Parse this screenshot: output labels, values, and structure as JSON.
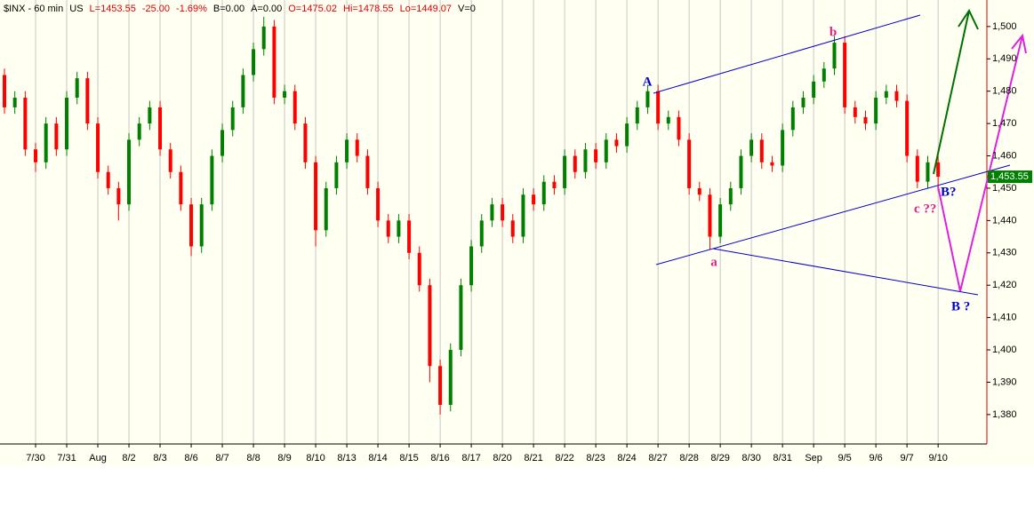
{
  "chart_data": {
    "type": "candlestick",
    "header": [
      {
        "text": "$INX - 60 min",
        "color": "#000000"
      },
      {
        "text": "US",
        "color": "#000000"
      },
      {
        "text": "L=1453.55",
        "color": "#e00000"
      },
      {
        "text": "-25.00",
        "color": "#e00000"
      },
      {
        "text": "-1.69%",
        "color": "#e00000"
      },
      {
        "text": "B=0.00",
        "color": "#000000"
      },
      {
        "text": "A=0.00",
        "color": "#000000"
      },
      {
        "text": "O=1475.02",
        "color": "#e00000"
      },
      {
        "text": "Hi=1478.55",
        "color": "#e00000"
      },
      {
        "text": "Lo=1449.07",
        "color": "#e00000"
      },
      {
        "text": "V=0",
        "color": "#000000"
      }
    ],
    "up_color": "#008000",
    "down_color": "#ff0000",
    "open": [
      1485,
      1475,
      1478,
      1462,
      1458,
      1470,
      1462,
      1478,
      1484,
      1470,
      1455,
      1450,
      1445,
      1465,
      1470,
      1475,
      1462,
      1455,
      1445,
      1432,
      1445,
      1460,
      1468,
      1475,
      1485,
      1493,
      1500,
      1478,
      1480,
      1470,
      1458,
      1437,
      1450,
      1458,
      1465,
      1460,
      1450,
      1440,
      1435,
      1440,
      1430,
      1420,
      1395,
      1383,
      1400,
      1420,
      1432,
      1440,
      1445,
      1440,
      1435,
      1448,
      1445,
      1452,
      1450,
      1460,
      1455,
      1462,
      1458,
      1465,
      1463,
      1470,
      1475,
      1480,
      1470,
      1472,
      1465,
      1450,
      1448,
      1435,
      1445,
      1450,
      1460,
      1465,
      1458,
      1457,
      1468,
      1475,
      1478,
      1483,
      1487,
      1495,
      1475,
      1472,
      1470,
      1478,
      1480,
      1477,
      1460,
      1452,
      1458
    ],
    "high": [
      1487,
      1480,
      1480,
      1464,
      1472,
      1472,
      1480,
      1486,
      1486,
      1472,
      1457,
      1452,
      1467,
      1472,
      1477,
      1477,
      1464,
      1457,
      1447,
      1447,
      1462,
      1470,
      1477,
      1487,
      1495,
      1503,
      1502,
      1482,
      1482,
      1472,
      1460,
      1452,
      1460,
      1467,
      1467,
      1462,
      1452,
      1442,
      1442,
      1442,
      1432,
      1422,
      1397,
      1402,
      1422,
      1434,
      1442,
      1447,
      1447,
      1442,
      1450,
      1450,
      1454,
      1454,
      1462,
      1462,
      1464,
      1464,
      1467,
      1467,
      1472,
      1477,
      1482,
      1482,
      1474,
      1474,
      1467,
      1452,
      1450,
      1447,
      1452,
      1462,
      1467,
      1467,
      1460,
      1470,
      1477,
      1480,
      1485,
      1489,
      1497,
      1497,
      1477,
      1474,
      1480,
      1482,
      1482,
      1479,
      1462,
      1460,
      1460
    ],
    "low": [
      1473,
      1473,
      1460,
      1455,
      1456,
      1460,
      1460,
      1476,
      1468,
      1453,
      1448,
      1440,
      1443,
      1463,
      1468,
      1460,
      1453,
      1443,
      1429,
      1430,
      1443,
      1458,
      1466,
      1473,
      1483,
      1491,
      1476,
      1476,
      1468,
      1456,
      1432,
      1435,
      1448,
      1456,
      1458,
      1448,
      1438,
      1433,
      1433,
      1428,
      1418,
      1390,
      1380,
      1381,
      1398,
      1418,
      1430,
      1438,
      1438,
      1433,
      1433,
      1443,
      1443,
      1448,
      1448,
      1453,
      1453,
      1456,
      1456,
      1461,
      1461,
      1468,
      1473,
      1468,
      1468,
      1463,
      1448,
      1446,
      1431,
      1433,
      1443,
      1448,
      1458,
      1456,
      1455,
      1455,
      1466,
      1473,
      1476,
      1481,
      1485,
      1473,
      1470,
      1468,
      1468,
      1476,
      1475,
      1458,
      1450,
      1450,
      1449.07
    ],
    "close": [
      1475,
      1478,
      1462,
      1458,
      1470,
      1462,
      1478,
      1484,
      1470,
      1455,
      1450,
      1445,
      1465,
      1470,
      1475,
      1462,
      1455,
      1445,
      1432,
      1445,
      1460,
      1468,
      1475,
      1485,
      1493,
      1500,
      1478,
      1480,
      1470,
      1458,
      1437,
      1450,
      1458,
      1465,
      1460,
      1450,
      1440,
      1435,
      1440,
      1430,
      1420,
      1395,
      1383,
      1400,
      1420,
      1432,
      1440,
      1445,
      1440,
      1435,
      1448,
      1445,
      1452,
      1450,
      1460,
      1455,
      1462,
      1458,
      1465,
      1463,
      1470,
      1475,
      1480,
      1470,
      1472,
      1465,
      1450,
      1448,
      1435,
      1445,
      1450,
      1460,
      1465,
      1458,
      1457,
      1468,
      1475,
      1478,
      1483,
      1487,
      1495,
      1475,
      1472,
      1470,
      1478,
      1480,
      1477,
      1460,
      1452,
      1458,
      1453.55
    ],
    "last_price": {
      "value": 1453.55,
      "label": "1,453.55"
    },
    "xlim": [
      -0.43,
      94.7
    ],
    "xticks": [
      {
        "value": 3,
        "label": "7/30"
      },
      {
        "value": 6,
        "label": "7/31"
      },
      {
        "value": 9,
        "label": "Aug"
      },
      {
        "value": 12,
        "label": "8/2"
      },
      {
        "value": 15,
        "label": "8/3"
      },
      {
        "value": 18,
        "label": "8/6"
      },
      {
        "value": 21,
        "label": "8/7"
      },
      {
        "value": 24,
        "label": "8/8"
      },
      {
        "value": 27,
        "label": "8/9"
      },
      {
        "value": 30,
        "label": "8/10"
      },
      {
        "value": 33,
        "label": "8/13"
      },
      {
        "value": 36,
        "label": "8/14"
      },
      {
        "value": 39,
        "label": "8/15"
      },
      {
        "value": 42,
        "label": "8/16"
      },
      {
        "value": 45,
        "label": "8/17"
      },
      {
        "value": 48,
        "label": "8/20"
      },
      {
        "value": 51,
        "label": "8/21"
      },
      {
        "value": 54,
        "label": "8/22"
      },
      {
        "value": 57,
        "label": "8/23"
      },
      {
        "value": 60,
        "label": "8/24"
      },
      {
        "value": 63,
        "label": "8/27"
      },
      {
        "value": 66,
        "label": "8/28"
      },
      {
        "value": 69,
        "label": "8/29"
      },
      {
        "value": 72,
        "label": "8/30"
      },
      {
        "value": 75,
        "label": "8/31"
      },
      {
        "value": 78,
        "label": "Sep"
      },
      {
        "value": 81,
        "label": "9/5"
      },
      {
        "value": 84,
        "label": "9/6"
      },
      {
        "value": 87,
        "label": "9/7"
      },
      {
        "value": 90,
        "label": "9/10"
      }
    ],
    "ylim": [
      1370.9,
      1508.2
    ],
    "yticks": [
      {
        "value": 1380,
        "label": "1,380"
      },
      {
        "value": 1390,
        "label": "1,390"
      },
      {
        "value": 1400,
        "label": "1,400"
      },
      {
        "value": 1410,
        "label": "1,410"
      },
      {
        "value": 1420,
        "label": "1,420"
      },
      {
        "value": 1430,
        "label": "1,430"
      },
      {
        "value": 1440,
        "label": "1,440"
      },
      {
        "value": 1450,
        "label": "1,450"
      },
      {
        "value": 1460,
        "label": "1,460"
      },
      {
        "value": 1470,
        "label": "1,470"
      },
      {
        "value": 1480,
        "label": "1,480"
      },
      {
        "value": 1490,
        "label": "1,490"
      },
      {
        "value": 1500,
        "label": "1,500"
      }
    ],
    "grid": true,
    "annotations": {
      "A": "A",
      "a": "a",
      "b": "b",
      "c": "c ??",
      "B1": "B?",
      "B2": "B ?"
    }
  }
}
